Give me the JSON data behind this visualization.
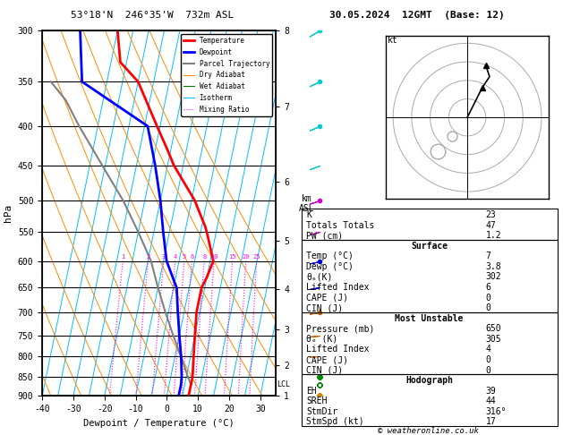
{
  "title_left": "53°18'N  246°35'W  732m ASL",
  "title_right": "30.05.2024  12GMT  (Base: 12)",
  "xlabel": "Dewpoint / Temperature (°C)",
  "ylabel_left": "hPa",
  "pressure_ticks": [
    300,
    350,
    400,
    450,
    500,
    550,
    600,
    650,
    700,
    750,
    800,
    850,
    900
  ],
  "temp_min": -40,
  "temp_max": 35,
  "temp_ticks": [
    -40,
    -30,
    -20,
    -10,
    0,
    10,
    20,
    30
  ],
  "skew_factor": 22,
  "temp_profile_p": [
    300,
    330,
    350,
    400,
    430,
    450,
    500,
    540,
    550,
    600,
    630,
    650,
    700,
    750,
    800,
    850,
    870,
    900
  ],
  "temp_profile_t": [
    -40,
    -37,
    -30,
    -21,
    -16,
    -13,
    -4,
    1,
    2,
    6,
    5,
    4,
    4,
    5,
    6,
    7,
    7,
    7
  ],
  "dewp_profile_p": [
    300,
    350,
    400,
    450,
    500,
    550,
    600,
    640,
    650,
    700,
    750,
    800,
    850,
    870,
    900
  ],
  "dewp_profile_t": [
    -52,
    -48,
    -24,
    -19,
    -15,
    -12,
    -9,
    -5,
    -4,
    -2,
    0,
    2,
    3.5,
    3.8,
    3.8
  ],
  "parcel_profile_p": [
    870,
    850,
    800,
    750,
    700,
    650,
    600,
    550,
    500,
    450,
    400,
    370,
    350
  ],
  "parcel_profile_t": [
    7,
    5.5,
    2,
    -2,
    -6,
    -10,
    -14,
    -20,
    -27,
    -36,
    -46,
    -52,
    -58
  ],
  "km_ticks": [
    1,
    2,
    3,
    4,
    5,
    6,
    7,
    8
  ],
  "km_pressures": [
    900,
    800,
    700,
    600,
    500,
    400,
    300,
    225
  ],
  "mixing_ratio_vals": [
    1,
    2,
    3,
    4,
    5,
    6,
    8,
    10,
    15,
    20,
    25
  ],
  "isotherm_temps": [
    -40,
    -35,
    -30,
    -25,
    -20,
    -15,
    -10,
    -5,
    0,
    5,
    10,
    15,
    20,
    25,
    30,
    35
  ],
  "dry_adiabat_thetas": [
    -40,
    -30,
    -20,
    -10,
    0,
    10,
    20,
    30,
    40,
    50,
    60,
    70
  ],
  "wet_adiabat_t0s": [
    -30,
    -20,
    -10,
    0,
    10,
    20,
    30
  ],
  "lcl_pressure": 870,
  "color_temp": "#ff0000",
  "color_dewp": "#0000ff",
  "color_parcel": "#808080",
  "color_dry_adiabat": "#ff8c00",
  "color_wet_adiabat": "#008000",
  "color_isotherm": "#00bfff",
  "color_mixing": "#ff00ff",
  "color_bg": "#ffffff",
  "color_black": "#000000",
  "stats_K": 23,
  "stats_TT": 47,
  "stats_PW": "1.2",
  "stats_surf_temp": 7,
  "stats_surf_dewp": "3.8",
  "stats_surf_theta_e": 302,
  "stats_surf_li": 6,
  "stats_surf_cape": 0,
  "stats_surf_cin": 0,
  "stats_mu_pressure": 650,
  "stats_mu_theta_e": 305,
  "stats_mu_li": 4,
  "stats_mu_cape": 0,
  "stats_mu_cin": 0,
  "stats_EH": 39,
  "stats_SREH": 44,
  "stats_StmDir": "316°",
  "stats_StmSpd": 17,
  "hodo_u": [
    0,
    2,
    4,
    6,
    5
  ],
  "hodo_v": [
    0,
    4,
    8,
    11,
    14
  ],
  "hodo_circles": [
    5,
    10,
    15,
    20
  ],
  "copyright": "© weatheronline.co.uk",
  "wind_barb_p": [
    300,
    350,
    400,
    450,
    500,
    550,
    600,
    650,
    700,
    750,
    800,
    850,
    870,
    900
  ],
  "wind_barb_spd": [
    25,
    22,
    18,
    15,
    13,
    11,
    9,
    7,
    5,
    4,
    3,
    2,
    1,
    1
  ],
  "wind_barb_dir": [
    240,
    245,
    248,
    250,
    252,
    255,
    258,
    260,
    262,
    265,
    268,
    270,
    272,
    275
  ],
  "wb_colors": [
    "#00cccc",
    "#00cccc",
    "#00cccc",
    "#00cccc",
    "#cc00cc",
    "#cc00cc",
    "#0000cc",
    "#0000cc",
    "#cc6600",
    "#cc6600",
    "#cc6600",
    "#008800",
    "#008800",
    "#cc8800"
  ]
}
